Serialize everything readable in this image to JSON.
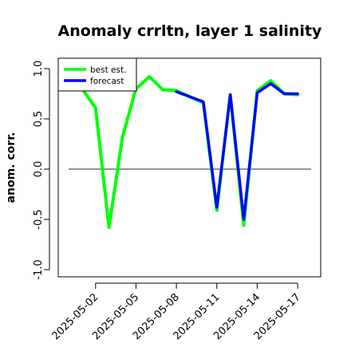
{
  "chart_data": {
    "type": "line",
    "title": "Anomaly crrltn, layer 1 salinity",
    "xlabel": "",
    "ylabel": "anom. corr.",
    "ylim": [
      -1.0,
      1.0
    ],
    "yticks": [
      "-1.0",
      "-0.5",
      "0.0",
      "0.5",
      "1.0"
    ],
    "xlim": [
      "2025-04-30",
      "2025-05-18"
    ],
    "xticks": [
      {
        "label": "2025-05-02",
        "color": "#000000"
      },
      {
        "label": "2025-05-05",
        "color": "#000000"
      },
      {
        "label": "2025-05-08",
        "color": "#228b22"
      },
      {
        "label": "2025-05-11",
        "color": "#000000"
      },
      {
        "label": "2025-05-14",
        "color": "#000000"
      },
      {
        "label": "2025-05-17",
        "color": "#000000"
      }
    ],
    "reference_line": 0.0,
    "grid": false,
    "legend_position": "top-left",
    "series": [
      {
        "name": "best est.",
        "color": "#00ff00",
        "x": [
          "2025-05-01",
          "2025-05-02",
          "2025-05-03",
          "2025-05-04",
          "2025-05-05",
          "2025-05-06",
          "2025-05-07",
          "2025-05-08",
          "2025-05-09",
          "2025-05-10",
          "2025-05-11",
          "2025-05-12",
          "2025-05-13",
          "2025-05-14",
          "2025-05-15",
          "2025-05-16",
          "2025-05-17"
        ],
        "values": [
          0.8,
          0.61,
          -0.58,
          0.32,
          0.8,
          0.92,
          0.79,
          0.78,
          0.72,
          0.66,
          -0.41,
          0.74,
          -0.56,
          0.78,
          0.88,
          0.75,
          0.74
        ]
      },
      {
        "name": "forecast",
        "color": "#0000ff",
        "x": [
          "2025-05-08",
          "2025-05-09",
          "2025-05-10",
          "2025-05-11",
          "2025-05-12",
          "2025-05-13",
          "2025-05-14",
          "2025-05-15",
          "2025-05-16",
          "2025-05-17"
        ],
        "values": [
          0.77,
          0.72,
          0.67,
          -0.38,
          0.74,
          -0.5,
          0.76,
          0.85,
          0.75,
          0.75
        ]
      }
    ]
  }
}
